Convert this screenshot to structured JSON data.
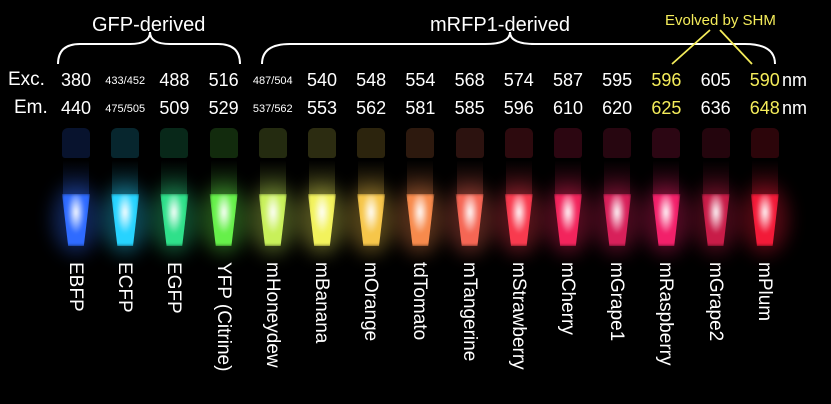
{
  "groups": {
    "gfp": "GFP-derived",
    "mrfp": "mRFP1-derived",
    "shm": "Evolved by SHM"
  },
  "row_labels": {
    "exc": "Exc.",
    "em": "Em."
  },
  "unit": "nm",
  "highlight_color": "#f4ec5a",
  "proteins": [
    {
      "name": "EBFP",
      "exc": "380",
      "em": "440",
      "color": "#2f6bff"
    },
    {
      "name": "ECFP",
      "exc": "433/452",
      "em": "475/505",
      "color": "#27d3ff"
    },
    {
      "name": "EGFP",
      "exc": "488",
      "em": "509",
      "color": "#2fe08a"
    },
    {
      "name": "YFP (Citrine)",
      "exc": "516",
      "em": "529",
      "color": "#66f04a"
    },
    {
      "name": "mHoneydew",
      "exc": "487/504",
      "em": "537/562",
      "color": "#c8f05a"
    },
    {
      "name": "mBanana",
      "exc": "540",
      "em": "553",
      "color": "#f2f25c"
    },
    {
      "name": "mOrange",
      "exc": "548",
      "em": "562",
      "color": "#f6c64a"
    },
    {
      "name": "tdTomato",
      "exc": "554",
      "em": "581",
      "color": "#f78a4c"
    },
    {
      "name": "mTangerine",
      "exc": "568",
      "em": "585",
      "color": "#f56654"
    },
    {
      "name": "mStrawberry",
      "exc": "574",
      "em": "596",
      "color": "#f83a4e"
    },
    {
      "name": "mCherry",
      "exc": "587",
      "em": "610",
      "color": "#f2245c"
    },
    {
      "name": "mGrape1",
      "exc": "595",
      "em": "620",
      "color": "#d8205a"
    },
    {
      "name": "mRaspberry",
      "exc": "596",
      "em": "625",
      "color": "#f2206a",
      "highlight": true
    },
    {
      "name": "mGrape2",
      "exc": "605",
      "em": "636",
      "color": "#c81c48"
    },
    {
      "name": "mPlum",
      "exc": "590",
      "em": "648",
      "color": "#f21a38",
      "highlight": true
    }
  ]
}
